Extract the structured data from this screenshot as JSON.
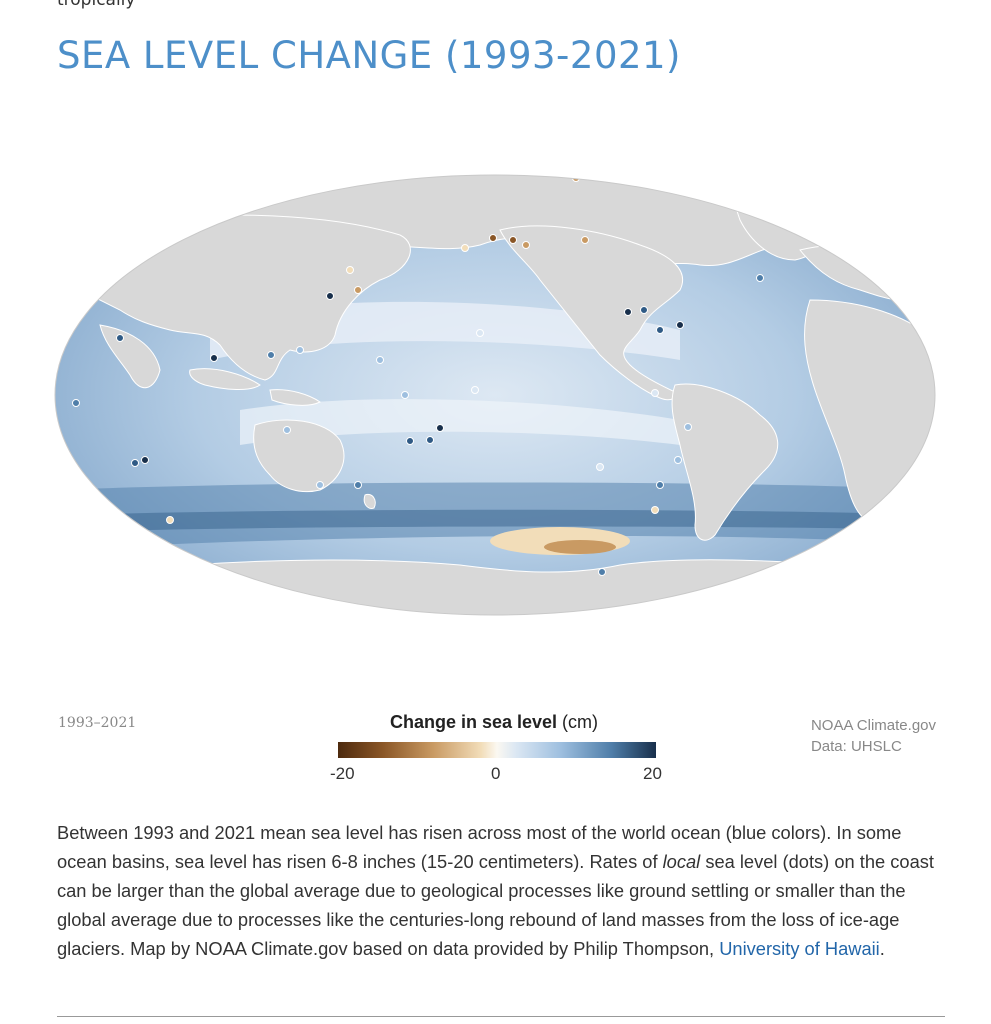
{
  "header": {
    "cut_text": "tropically",
    "title": "SEA LEVEL CHANGE (1993-2021)"
  },
  "map": {
    "period_label": "1993–2021",
    "projection": "Mollweide world map",
    "colors": {
      "land": "#d8d8d8",
      "land_border": "#ffffff",
      "ocean_rise_light": "#dbe7f3",
      "ocean_rise_mid": "#9ebfdf",
      "ocean_rise_dark": "#2f5a85",
      "ocean_fall": "#c99a63"
    }
  },
  "legend": {
    "title_bold": "Change in sea level",
    "title_unit": "(cm)",
    "ticks": [
      "-20",
      "0",
      "20"
    ],
    "range_min": -20,
    "range_max": 20
  },
  "credit": {
    "line1": "NOAA Climate.gov",
    "line2": "Data: UHSLC"
  },
  "caption": {
    "text_before_local": "Between 1993 and 2021 mean sea level has risen across most of the world ocean (blue colors). In some ocean basins, sea level has risen 6-8 inches (15-20 centimeters). Rates of ",
    "local_word": "local",
    "text_after_local": " sea level (dots) on the coast can be larger than the global average due to geological processes like ground settling or smaller than the global average due to processes like the centuries-long rebound of land masses from the loss of ice-age glaciers. Map by NOAA Climate.gov based on data provided by Philip Thompson, ",
    "link_text": "University of Hawaii",
    "text_end": "."
  }
}
